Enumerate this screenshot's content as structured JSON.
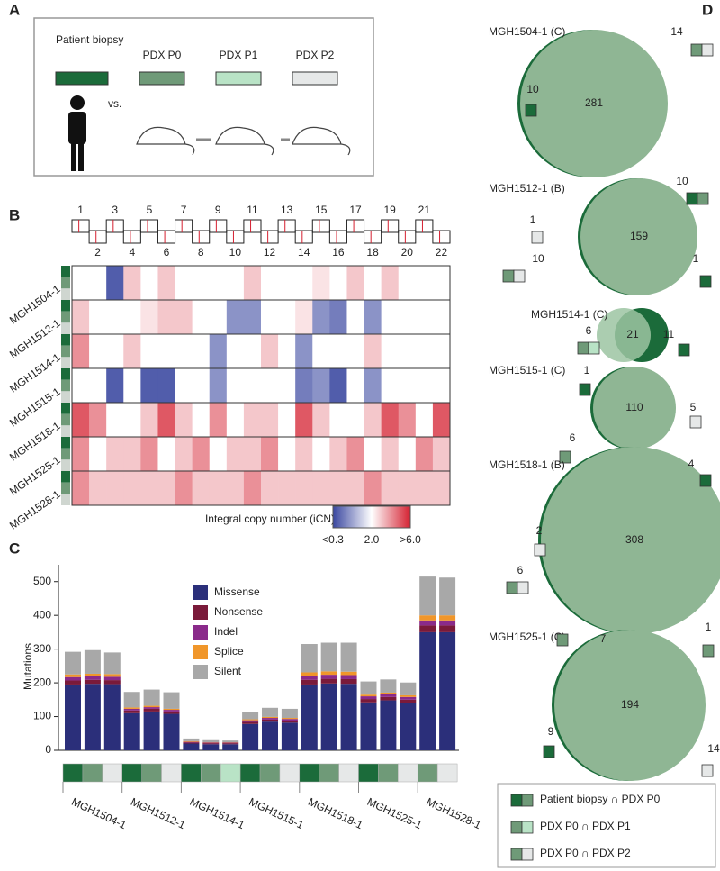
{
  "panel_labels": [
    "A",
    "B",
    "C",
    "D"
  ],
  "panel_a": {
    "stages": [
      {
        "name": "Patient biopsy",
        "color": "#1b6b3a"
      },
      {
        "name": "PDX P0",
        "color": "#6f9a78"
      },
      {
        "name": "PDX P1",
        "color": "#b9e3c6"
      },
      {
        "name": "PDX P2",
        "color": "#e6e8e8"
      }
    ],
    "vs": "vs."
  },
  "panel_b": {
    "chromosomes": [
      "1",
      "2",
      "3",
      "4",
      "5",
      "6",
      "7",
      "8",
      "9",
      "10",
      "11",
      "12",
      "13",
      "14",
      "15",
      "16",
      "17",
      "18",
      "19",
      "20",
      "21",
      "22"
    ],
    "samples": [
      "MGH1504-1",
      "MGH1512-1",
      "MGH1514-1",
      "MGH1515-1",
      "MGH1518-1",
      "MGH1525-1",
      "MGH1528-1"
    ],
    "icn": [
      [
        2,
        2,
        0.5,
        3,
        2,
        3,
        2,
        2,
        2,
        2,
        3,
        2,
        2,
        2,
        2.5,
        2,
        3,
        2,
        3,
        2,
        2,
        2
      ],
      [
        3,
        2,
        2,
        2,
        2.5,
        3,
        3,
        2,
        2,
        1,
        1,
        2,
        2,
        2.5,
        1,
        0.8,
        2,
        1,
        2,
        2,
        2,
        2
      ],
      [
        4,
        2,
        2,
        3,
        2,
        2,
        2,
        2,
        1,
        2,
        2,
        3,
        2,
        1,
        2,
        2,
        2,
        3,
        2,
        2,
        2,
        2
      ],
      [
        2,
        2,
        0.5,
        2,
        0.5,
        0.5,
        2,
        2,
        1,
        2,
        2,
        2,
        2,
        0.8,
        1,
        0.5,
        2,
        1,
        2,
        2,
        2,
        2
      ],
      [
        5,
        4,
        2,
        2,
        3,
        5,
        3,
        2,
        4,
        2,
        3,
        3,
        2,
        5,
        3,
        2,
        2,
        3,
        5,
        4,
        2,
        5
      ],
      [
        4,
        2,
        3,
        3,
        4,
        2,
        3,
        4,
        2,
        3,
        3,
        4,
        2,
        3,
        2,
        3,
        4,
        2,
        3,
        2,
        4,
        3
      ],
      [
        4,
        3,
        3,
        3,
        3,
        3,
        4,
        3,
        3,
        3,
        4,
        3,
        3,
        3,
        3,
        3,
        3,
        4,
        3,
        3,
        3,
        3
      ]
    ],
    "scale_title": "Integral copy number (iCN)",
    "scale": [
      {
        "value": 0.3,
        "label": "<0.3"
      },
      {
        "value": 2,
        "label": "2.0"
      },
      {
        "value": 6,
        "label": ">6.0"
      }
    ],
    "colors": [
      "#3a47a0",
      "#ffffff",
      "#d42030"
    ]
  },
  "chart_data": {
    "type": "bar",
    "stacked": true,
    "ylabel": "Mutations",
    "ylim": [
      0,
      550
    ],
    "yticks": [
      0,
      100,
      200,
      300,
      400,
      500
    ],
    "series": [
      {
        "name": "Missense",
        "color": "#2b2f7a"
      },
      {
        "name": "Nonsense",
        "color": "#7a1a3a"
      },
      {
        "name": "Indel",
        "color": "#8a2a8a"
      },
      {
        "name": "Splice",
        "color": "#f0962a"
      },
      {
        "name": "Silent",
        "color": "#a8a8a8"
      }
    ],
    "groups": [
      {
        "name": "MGH1504-1",
        "bars": [
          {
            "color": "#1b6b3a",
            "values": [
              195,
              12,
              10,
              8,
              67
            ]
          },
          {
            "color": "#6f9a78",
            "values": [
              197,
              12,
              10,
              8,
              70
            ]
          },
          {
            "color": "#e6e8e8",
            "values": [
              196,
              12,
              10,
              8,
              64
            ]
          }
        ]
      },
      {
        "name": "MGH1512-1",
        "bars": [
          {
            "color": "#1b6b3a",
            "values": [
              110,
              8,
              5,
              4,
              46
            ]
          },
          {
            "color": "#6f9a78",
            "values": [
              115,
              8,
              5,
              4,
              48
            ]
          },
          {
            "color": "#e6e8e8",
            "values": [
              108,
              7,
              5,
              3,
              49
            ]
          }
        ]
      },
      {
        "name": "MGH1514-1",
        "bars": [
          {
            "color": "#1b6b3a",
            "values": [
              20,
              3,
              2,
              2,
              8
            ]
          },
          {
            "color": "#6f9a78",
            "values": [
              18,
              3,
              2,
              1,
              6
            ]
          },
          {
            "color": "#b9e3c6",
            "values": [
              18,
              3,
              2,
              1,
              5
            ]
          }
        ]
      },
      {
        "name": "MGH1515-1",
        "bars": [
          {
            "color": "#1b6b3a",
            "values": [
              78,
              6,
              5,
              3,
              21
            ]
          },
          {
            "color": "#6f9a78",
            "values": [
              85,
              6,
              5,
              3,
              27
            ]
          },
          {
            "color": "#e6e8e8",
            "values": [
              82,
              6,
              5,
              3,
              27
            ]
          }
        ]
      },
      {
        "name": "MGH1518-1",
        "bars": [
          {
            "color": "#1b6b3a",
            "values": [
              195,
              14,
              12,
              10,
              84
            ]
          },
          {
            "color": "#6f9a78",
            "values": [
              198,
              14,
              12,
              10,
              85
            ]
          },
          {
            "color": "#e6e8e8",
            "values": [
              197,
              14,
              12,
              10,
              86
            ]
          }
        ]
      },
      {
        "name": "MGH1525-1",
        "bars": [
          {
            "color": "#1b6b3a",
            "values": [
              142,
              10,
              8,
              5,
              39
            ]
          },
          {
            "color": "#6f9a78",
            "values": [
              148,
              10,
              8,
              5,
              39
            ]
          },
          {
            "color": "#e6e8e8",
            "values": [
              140,
              10,
              8,
              5,
              38
            ]
          }
        ]
      },
      {
        "name": "MGH1528-1",
        "bars": [
          {
            "color": "#6f9a78",
            "values": [
              350,
              20,
              15,
              15,
              115
            ]
          },
          {
            "color": "#e6e8e8",
            "values": [
              350,
              20,
              15,
              15,
              112
            ]
          }
        ]
      }
    ]
  },
  "panel_d": {
    "venns": [
      {
        "name": "MGH1504-1 (C)",
        "shared": 281,
        "counts": [
          {
            "value": 10,
            "key": [
              "#1b6b3a"
            ]
          },
          {
            "value": 14,
            "key": [
              "#6f9a78",
              "#e6e8e8"
            ]
          }
        ]
      },
      {
        "name": "MGH1512-1 (B)",
        "shared": 159,
        "counts": [
          {
            "value": 10,
            "key": [
              "#1b6b3a",
              "#6f9a78"
            ]
          },
          {
            "value": 1,
            "key": [
              "#e6e8e8"
            ]
          },
          {
            "value": 10,
            "key": [
              "#6f9a78",
              "#e6e8e8"
            ]
          },
          {
            "value": 1,
            "key": [
              "#1b6b3a"
            ]
          }
        ]
      },
      {
        "name": "MGH1514-1 (C)",
        "shared": 21,
        "counts": [
          {
            "value": 6,
            "key": [
              "#6f9a78",
              "#b9e3c6"
            ]
          },
          {
            "value": 11,
            "key": [
              "#1b6b3a"
            ]
          }
        ]
      },
      {
        "name": "MGH1515-1 (C)",
        "shared": 110,
        "counts": [
          {
            "value": 1,
            "key": [
              "#1b6b3a"
            ]
          },
          {
            "value": 6,
            "key": [
              "#6f9a78"
            ]
          },
          {
            "value": 5,
            "key": [
              "#e6e8e8"
            ]
          }
        ]
      },
      {
        "name": "MGH1518-1 (B)",
        "shared": 308,
        "counts": [
          {
            "value": 4,
            "key": [
              "#1b6b3a"
            ]
          },
          {
            "value": 2,
            "key": [
              "#e6e8e8"
            ]
          },
          {
            "value": 6,
            "key": [
              "#6f9a78",
              "#e6e8e8"
            ]
          },
          {
            "value": 1,
            "key": [
              "#6f9a78"
            ]
          }
        ]
      },
      {
        "name": "MGH1525-1 (C)",
        "shared": 194,
        "counts": [
          {
            "value": 7,
            "key": [
              "#6f9a78"
            ]
          },
          {
            "value": 9,
            "key": [
              "#1b6b3a"
            ]
          },
          {
            "value": 14,
            "key": [
              "#e6e8e8"
            ]
          }
        ]
      }
    ],
    "legend": [
      {
        "label": "Patient biopsy ∩ PDX P0",
        "key": [
          "#1b6b3a",
          "#6f9a78"
        ]
      },
      {
        "label": "PDX P0 ∩ PDX P1",
        "key": [
          "#6f9a78",
          "#b9e3c6"
        ]
      },
      {
        "label": "PDX P0 ∩ PDX P2",
        "key": [
          "#6f9a78",
          "#e6e8e8"
        ]
      }
    ]
  }
}
